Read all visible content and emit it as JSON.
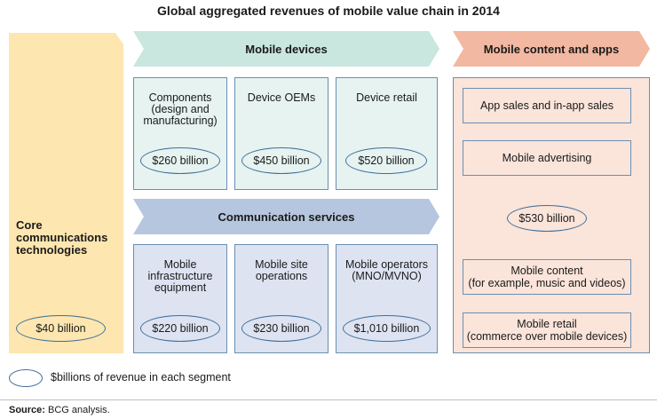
{
  "title": "Global aggregated revenues of mobile value chain in 2014",
  "core": {
    "label": "Core communications technologies",
    "value": "$40 billion"
  },
  "arrows": {
    "devices": "Mobile devices",
    "content": "Mobile content and apps",
    "comm": "Communication services"
  },
  "devices": [
    {
      "label": "Components (design and manufacturing)",
      "value": "$260 billion"
    },
    {
      "label": "Device OEMs",
      "value": "$450 billion"
    },
    {
      "label": "Device retail",
      "value": "$520 billion"
    }
  ],
  "services": [
    {
      "label": "Mobile infrastructure equipment",
      "value": "$220 billion"
    },
    {
      "label": "Mobile site operations",
      "value": "$230 billion"
    },
    {
      "label": "Mobile operators (MNO/MVNO)",
      "value": "$1,010 billion"
    }
  ],
  "content": {
    "items": [
      {
        "line1": "App sales and in-app sales",
        "line2": ""
      },
      {
        "line1": "Mobile advertising",
        "line2": ""
      },
      {
        "line1": "Mobile content",
        "line2": "(for example, music and videos)"
      },
      {
        "line1": "Mobile retail",
        "line2": "(commerce over mobile devices)"
      }
    ],
    "value": "$530 billion"
  },
  "legend": "$billions of revenue in each segment",
  "source": {
    "label": "Source:",
    "text": " BCG analysis."
  },
  "colors": {
    "core": "#fde6b0",
    "devices_arrow": "#c9e6df",
    "devices_box": "#e6f3f1",
    "comm_arrow": "#b6c6de",
    "comm_box": "#dde3f1",
    "content_arrow": "#f2b8a2",
    "content_box": "#fbe4da",
    "outline": "#6a8fb2"
  }
}
